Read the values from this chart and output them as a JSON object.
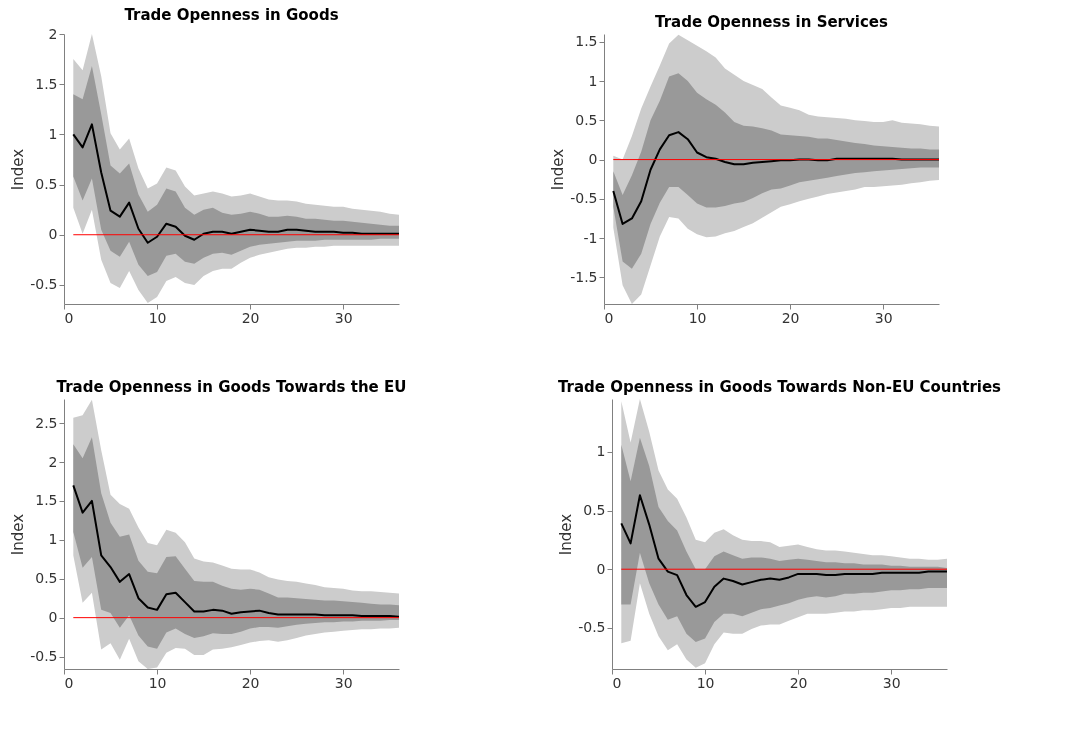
{
  "chart_data": [
    {
      "type": "line",
      "title": "Trade Openness in Goods",
      "ylabel": "Index",
      "xlim": [
        0,
        36
      ],
      "xticks": [
        0,
        10,
        20,
        30
      ],
      "ylim": [
        -0.69,
        2
      ],
      "yticks": [
        -0.5,
        0,
        0.5,
        1,
        1.5,
        2
      ],
      "grid": false,
      "x": [
        1,
        2,
        3,
        4,
        5,
        6,
        7,
        8,
        9,
        10,
        11,
        12,
        13,
        14,
        15,
        16,
        17,
        18,
        19,
        20,
        21,
        22,
        23,
        24,
        25,
        26,
        27,
        28,
        29,
        30,
        31,
        32,
        33,
        34,
        35,
        36
      ],
      "ref_lines": [
        {
          "axis": "y",
          "value": 0,
          "color": "#ff0000"
        }
      ],
      "series": [
        {
          "color": "#cccccc",
          "values": [
            null,
            null,
            null,
            null,
            null,
            null,
            null,
            null,
            null,
            null,
            null,
            null,
            null,
            null,
            null,
            null,
            null,
            null,
            null,
            null,
            null,
            null,
            null,
            null,
            null,
            null,
            null,
            null,
            null,
            null,
            null,
            null,
            null,
            null,
            null,
            null
          ],
          "lower": [
            0.27,
            0.01,
            0.25,
            -0.25,
            -0.48,
            -0.53,
            -0.36,
            -0.55,
            -0.68,
            -0.62,
            -0.46,
            -0.42,
            -0.48,
            -0.5,
            -0.41,
            -0.36,
            -0.34,
            -0.34,
            -0.28,
            -0.23,
            -0.2,
            -0.18,
            -0.16,
            -0.14,
            -0.13,
            -0.13,
            -0.12,
            -0.12,
            -0.11,
            -0.11,
            -0.11,
            -0.11,
            -0.11,
            -0.11,
            -0.11,
            -0.11
          ],
          "upper": [
            1.75,
            1.64,
            2.0,
            1.58,
            1.01,
            0.85,
            0.96,
            0.66,
            0.46,
            0.51,
            0.67,
            0.64,
            0.48,
            0.39,
            0.41,
            0.43,
            0.41,
            0.38,
            0.39,
            0.41,
            0.38,
            0.35,
            0.34,
            0.34,
            0.33,
            0.31,
            0.3,
            0.29,
            0.28,
            0.28,
            0.26,
            0.25,
            0.24,
            0.23,
            0.21,
            0.2
          ]
        },
        {
          "color": "#999999",
          "values": [
            null,
            null,
            null,
            null,
            null,
            null,
            null,
            null,
            null,
            null,
            null,
            null,
            null,
            null,
            null,
            null,
            null,
            null,
            null,
            null,
            null,
            null,
            null,
            null,
            null,
            null,
            null,
            null,
            null,
            null,
            null,
            null,
            null,
            null,
            null,
            null
          ],
          "lower": [
            0.58,
            0.34,
            0.56,
            0.05,
            -0.16,
            -0.22,
            -0.07,
            -0.3,
            -0.41,
            -0.37,
            -0.21,
            -0.19,
            -0.27,
            -0.29,
            -0.23,
            -0.19,
            -0.18,
            -0.2,
            -0.16,
            -0.12,
            -0.1,
            -0.09,
            -0.08,
            -0.07,
            -0.06,
            -0.06,
            -0.06,
            -0.05,
            -0.05,
            -0.05,
            -0.05,
            -0.05,
            -0.05,
            -0.04,
            -0.04,
            -0.04
          ],
          "upper": [
            1.4,
            1.35,
            1.68,
            1.2,
            0.69,
            0.61,
            0.71,
            0.4,
            0.23,
            0.3,
            0.46,
            0.43,
            0.27,
            0.2,
            0.25,
            0.27,
            0.22,
            0.2,
            0.21,
            0.23,
            0.21,
            0.18,
            0.18,
            0.19,
            0.18,
            0.16,
            0.16,
            0.15,
            0.14,
            0.14,
            0.13,
            0.12,
            0.11,
            0.1,
            0.09,
            0.09
          ]
        },
        {
          "color": "#000000",
          "values": [
            1.0,
            0.87,
            1.1,
            0.62,
            0.24,
            0.18,
            0.32,
            0.06,
            -0.08,
            -0.02,
            0.11,
            0.08,
            -0.01,
            -0.05,
            0.01,
            0.03,
            0.03,
            0.01,
            0.03,
            0.05,
            0.04,
            0.03,
            0.03,
            0.05,
            0.05,
            0.04,
            0.03,
            0.03,
            0.03,
            0.02,
            0.02,
            0.01,
            0.01,
            0.01,
            0.01,
            0.01
          ]
        }
      ]
    },
    {
      "type": "line",
      "title": "Trade Openness in Services",
      "ylabel": "Index",
      "xlim": [
        0,
        36
      ],
      "xticks": [
        0,
        10,
        20,
        30
      ],
      "ylim": [
        -1.84,
        1.6
      ],
      "yticks": [
        -1.5,
        -1,
        -0.5,
        0,
        0.5,
        1,
        1.5
      ],
      "grid": false,
      "x": [
        1,
        2,
        3,
        4,
        5,
        6,
        7,
        8,
        9,
        10,
        11,
        12,
        13,
        14,
        15,
        16,
        17,
        18,
        19,
        20,
        21,
        22,
        23,
        24,
        25,
        26,
        27,
        28,
        29,
        30,
        31,
        32,
        33,
        34,
        35,
        36
      ],
      "ref_lines": [
        {
          "axis": "y",
          "value": 0,
          "color": "#ff0000"
        }
      ],
      "series": [
        {
          "color": "#cccccc",
          "values": [
            null,
            null,
            null,
            null,
            null,
            null,
            null,
            null,
            null,
            null,
            null,
            null,
            null,
            null,
            null,
            null,
            null,
            null,
            null,
            null,
            null,
            null,
            null,
            null,
            null,
            null,
            null,
            null,
            null,
            null,
            null,
            null,
            null,
            null,
            null,
            null
          ],
          "lower": [
            -0.87,
            -1.6,
            -1.84,
            -1.72,
            -1.35,
            -0.98,
            -0.73,
            -0.75,
            -0.88,
            -0.95,
            -0.99,
            -0.98,
            -0.94,
            -0.91,
            -0.86,
            -0.81,
            -0.74,
            -0.67,
            -0.6,
            -0.57,
            -0.53,
            -0.5,
            -0.47,
            -0.44,
            -0.42,
            -0.4,
            -0.38,
            -0.35,
            -0.35,
            -0.34,
            -0.33,
            -0.32,
            -0.3,
            -0.29,
            -0.27,
            -0.26
          ],
          "upper": [
            0.05,
            0.0,
            0.3,
            0.65,
            0.93,
            1.2,
            1.48,
            1.59,
            1.52,
            1.45,
            1.38,
            1.3,
            1.16,
            1.08,
            1.0,
            0.95,
            0.9,
            0.79,
            0.69,
            0.66,
            0.63,
            0.57,
            0.55,
            0.54,
            0.53,
            0.52,
            0.5,
            0.49,
            0.48,
            0.48,
            0.5,
            0.47,
            0.46,
            0.45,
            0.43,
            0.42
          ]
        },
        {
          "color": "#999999",
          "values": [
            null,
            null,
            null,
            null,
            null,
            null,
            null,
            null,
            null,
            null,
            null,
            null,
            null,
            null,
            null,
            null,
            null,
            null,
            null,
            null,
            null,
            null,
            null,
            null,
            null,
            null,
            null,
            null,
            null,
            null,
            null,
            null,
            null,
            null,
            null,
            null
          ],
          "lower": [
            -0.6,
            -1.3,
            -1.39,
            -1.2,
            -0.82,
            -0.55,
            -0.35,
            -0.35,
            -0.45,
            -0.56,
            -0.61,
            -0.61,
            -0.59,
            -0.56,
            -0.54,
            -0.49,
            -0.43,
            -0.38,
            -0.37,
            -0.33,
            -0.29,
            -0.27,
            -0.25,
            -0.23,
            -0.21,
            -0.19,
            -0.17,
            -0.16,
            -0.15,
            -0.14,
            -0.13,
            -0.12,
            -0.11,
            -0.1,
            -0.1,
            -0.1
          ],
          "upper": [
            -0.15,
            -0.45,
            -0.2,
            0.1,
            0.5,
            0.75,
            1.06,
            1.1,
            1.0,
            0.85,
            0.77,
            0.7,
            0.6,
            0.48,
            0.43,
            0.42,
            0.4,
            0.37,
            0.32,
            0.31,
            0.3,
            0.29,
            0.27,
            0.27,
            0.25,
            0.23,
            0.21,
            0.2,
            0.18,
            0.17,
            0.16,
            0.15,
            0.14,
            0.14,
            0.13,
            0.13
          ]
        },
        {
          "color": "#000000",
          "values": [
            -0.4,
            -0.82,
            -0.75,
            -0.53,
            -0.13,
            0.13,
            0.31,
            0.35,
            0.26,
            0.09,
            0.03,
            0.01,
            -0.03,
            -0.06,
            -0.06,
            -0.04,
            -0.03,
            -0.02,
            -0.01,
            -0.01,
            0,
            0,
            -0.01,
            -0.01,
            0.01,
            0.01,
            0.01,
            0.01,
            0.01,
            0.01,
            0.01,
            0,
            0,
            0,
            0,
            0
          ]
        }
      ]
    },
    {
      "type": "line",
      "title": "Trade Openness in Goods Towards the EU",
      "ylabel": "Index",
      "xlim": [
        0,
        36
      ],
      "xticks": [
        0,
        10,
        20,
        30
      ],
      "ylim": [
        -0.66,
        2.81
      ],
      "yticks": [
        -0.5,
        0,
        0.5,
        1,
        1.5,
        2,
        2.5
      ],
      "grid": false,
      "x": [
        1,
        2,
        3,
        4,
        5,
        6,
        7,
        8,
        9,
        10,
        11,
        12,
        13,
        14,
        15,
        16,
        17,
        18,
        19,
        20,
        21,
        22,
        23,
        24,
        25,
        26,
        27,
        28,
        29,
        30,
        31,
        32,
        33,
        34,
        35,
        36
      ],
      "ref_lines": [
        {
          "axis": "y",
          "value": 0,
          "color": "#ff0000"
        }
      ],
      "series": [
        {
          "color": "#cccccc",
          "values": [
            null,
            null,
            null,
            null,
            null,
            null,
            null,
            null,
            null,
            null,
            null,
            null,
            null,
            null,
            null,
            null,
            null,
            null,
            null,
            null,
            null,
            null,
            null,
            null,
            null,
            null,
            null,
            null,
            null,
            null,
            null,
            null,
            null,
            null,
            null,
            null
          ],
          "lower": [
            0.8,
            0.19,
            0.32,
            -0.41,
            -0.33,
            -0.54,
            -0.27,
            -0.56,
            -0.66,
            -0.64,
            -0.45,
            -0.39,
            -0.4,
            -0.48,
            -0.48,
            -0.41,
            -0.4,
            -0.38,
            -0.35,
            -0.32,
            -0.3,
            -0.29,
            -0.31,
            -0.29,
            -0.26,
            -0.23,
            -0.21,
            -0.19,
            -0.18,
            -0.17,
            -0.16,
            -0.15,
            -0.15,
            -0.14,
            -0.14,
            -0.13
          ],
          "upper": [
            2.57,
            2.6,
            2.8,
            2.15,
            1.58,
            1.46,
            1.4,
            1.16,
            0.96,
            0.93,
            1.13,
            1.09,
            0.97,
            0.76,
            0.72,
            0.71,
            0.67,
            0.63,
            0.62,
            0.62,
            0.58,
            0.52,
            0.49,
            0.47,
            0.46,
            0.44,
            0.42,
            0.39,
            0.38,
            0.37,
            0.35,
            0.34,
            0.34,
            0.33,
            0.32,
            0.31
          ]
        },
        {
          "color": "#999999",
          "values": [
            null,
            null,
            null,
            null,
            null,
            null,
            null,
            null,
            null,
            null,
            null,
            null,
            null,
            null,
            null,
            null,
            null,
            null,
            null,
            null,
            null,
            null,
            null,
            null,
            null,
            null,
            null,
            null,
            null,
            null,
            null,
            null,
            null,
            null,
            null,
            null
          ],
          "lower": [
            1.1,
            0.64,
            0.78,
            0.1,
            0.06,
            -0.13,
            0.03,
            -0.23,
            -0.37,
            -0.4,
            -0.19,
            -0.14,
            -0.21,
            -0.26,
            -0.24,
            -0.2,
            -0.21,
            -0.21,
            -0.18,
            -0.14,
            -0.12,
            -0.12,
            -0.13,
            -0.11,
            -0.09,
            -0.08,
            -0.07,
            -0.06,
            -0.06,
            -0.05,
            -0.05,
            -0.04,
            -0.04,
            -0.04,
            -0.03,
            -0.03
          ],
          "upper": [
            2.23,
            2.05,
            2.32,
            1.6,
            1.22,
            1.04,
            1.07,
            0.73,
            0.59,
            0.57,
            0.78,
            0.79,
            0.63,
            0.47,
            0.46,
            0.46,
            0.41,
            0.37,
            0.36,
            0.37,
            0.36,
            0.31,
            0.26,
            0.26,
            0.25,
            0.24,
            0.23,
            0.22,
            0.22,
            0.21,
            0.2,
            0.19,
            0.18,
            0.17,
            0.17,
            0.16
          ]
        },
        {
          "color": "#000000",
          "values": [
            1.7,
            1.35,
            1.5,
            0.8,
            0.65,
            0.46,
            0.56,
            0.25,
            0.13,
            0.1,
            0.3,
            0.32,
            0.2,
            0.08,
            0.08,
            0.1,
            0.09,
            0.05,
            0.07,
            0.08,
            0.09,
            0.06,
            0.04,
            0.04,
            0.04,
            0.04,
            0.04,
            0.03,
            0.03,
            0.03,
            0.03,
            0.02,
            0.02,
            0.02,
            0.02,
            0.01
          ]
        }
      ]
    },
    {
      "type": "line",
      "title": "Trade Openness in Goods Towards Non-EU Countries",
      "ylabel": "Index",
      "xlim": [
        0,
        36
      ],
      "xticks": [
        0,
        10,
        20,
        30
      ],
      "ylim": [
        -0.85,
        1.45
      ],
      "yticks": [
        -0.5,
        0,
        0.5,
        1
      ],
      "grid": false,
      "x": [
        1,
        2,
        3,
        4,
        5,
        6,
        7,
        8,
        9,
        10,
        11,
        12,
        13,
        14,
        15,
        16,
        17,
        18,
        19,
        20,
        21,
        22,
        23,
        24,
        25,
        26,
        27,
        28,
        29,
        30,
        31,
        32,
        33,
        34,
        35,
        36
      ],
      "ref_lines": [
        {
          "axis": "y",
          "value": 0,
          "color": "#ff0000"
        }
      ],
      "series": [
        {
          "color": "#cccccc",
          "values": [
            null,
            null,
            null,
            null,
            null,
            null,
            null,
            null,
            null,
            null,
            null,
            null,
            null,
            null,
            null,
            null,
            null,
            null,
            null,
            null,
            null,
            null,
            null,
            null,
            null,
            null,
            null,
            null,
            null,
            null,
            null,
            null,
            null,
            null,
            null,
            null
          ],
          "lower": [
            -0.63,
            -0.61,
            -0.12,
            -0.38,
            -0.57,
            -0.69,
            -0.64,
            -0.77,
            -0.84,
            -0.8,
            -0.64,
            -0.54,
            -0.55,
            -0.55,
            -0.51,
            -0.48,
            -0.47,
            -0.47,
            -0.44,
            -0.41,
            -0.38,
            -0.38,
            -0.38,
            -0.37,
            -0.36,
            -0.36,
            -0.35,
            -0.35,
            -0.34,
            -0.33,
            -0.33,
            -0.32,
            -0.32,
            -0.32,
            -0.32,
            -0.32
          ],
          "upper": [
            1.43,
            1.08,
            1.45,
            1.17,
            0.84,
            0.68,
            0.6,
            0.44,
            0.25,
            0.23,
            0.31,
            0.34,
            0.29,
            0.25,
            0.24,
            0.24,
            0.23,
            0.19,
            0.2,
            0.21,
            0.19,
            0.17,
            0.16,
            0.16,
            0.15,
            0.14,
            0.13,
            0.12,
            0.12,
            0.11,
            0.1,
            0.09,
            0.09,
            0.08,
            0.08,
            0.09
          ]
        },
        {
          "color": "#999999",
          "values": [
            null,
            null,
            null,
            null,
            null,
            null,
            null,
            null,
            null,
            null,
            null,
            null,
            null,
            null,
            null,
            null,
            null,
            null,
            null,
            null,
            null,
            null,
            null,
            null,
            null,
            null,
            null,
            null,
            null,
            null,
            null,
            null,
            null,
            null,
            null,
            null
          ],
          "lower": [
            -0.3,
            -0.3,
            0.14,
            -0.12,
            -0.3,
            -0.43,
            -0.4,
            -0.55,
            -0.62,
            -0.59,
            -0.45,
            -0.38,
            -0.38,
            -0.4,
            -0.37,
            -0.34,
            -0.33,
            -0.31,
            -0.29,
            -0.26,
            -0.24,
            -0.23,
            -0.24,
            -0.23,
            -0.21,
            -0.21,
            -0.2,
            -0.2,
            -0.19,
            -0.18,
            -0.18,
            -0.17,
            -0.17,
            -0.16,
            -0.16,
            -0.16
          ],
          "upper": [
            1.06,
            0.75,
            1.12,
            0.88,
            0.53,
            0.41,
            0.33,
            0.15,
            0.0,
            0.0,
            0.11,
            0.15,
            0.12,
            0.09,
            0.1,
            0.1,
            0.09,
            0.07,
            0.08,
            0.09,
            0.08,
            0.07,
            0.06,
            0.06,
            0.05,
            0.05,
            0.04,
            0.04,
            0.04,
            0.03,
            0.03,
            0.02,
            0.02,
            0.02,
            0.02,
            0.01
          ]
        },
        {
          "color": "#000000",
          "values": [
            0.39,
            0.22,
            0.63,
            0.38,
            0.09,
            -0.02,
            -0.05,
            -0.22,
            -0.32,
            -0.28,
            -0.15,
            -0.08,
            -0.1,
            -0.13,
            -0.11,
            -0.09,
            -0.08,
            -0.09,
            -0.07,
            -0.04,
            -0.04,
            -0.04,
            -0.05,
            -0.05,
            -0.04,
            -0.04,
            -0.04,
            -0.04,
            -0.03,
            -0.03,
            -0.03,
            -0.03,
            -0.03,
            -0.02,
            -0.02,
            -0.02
          ]
        }
      ]
    }
  ]
}
